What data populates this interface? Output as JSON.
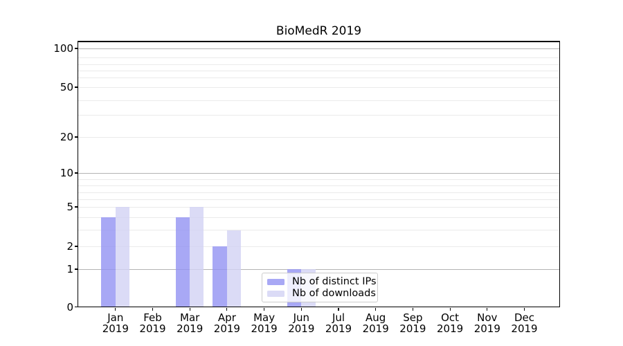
{
  "chart_data": {
    "type": "bar",
    "title": "BioMedR 2019",
    "year": "2019",
    "categories": [
      "Jan",
      "Feb",
      "Mar",
      "Apr",
      "May",
      "Jun",
      "Jul",
      "Aug",
      "Sep",
      "Oct",
      "Nov",
      "Dec"
    ],
    "series": [
      {
        "name": "Nb of distinct IPs",
        "color": "rgb(146,146,243)",
        "alpha": 0.8,
        "solid_hex": "#a8a8f5",
        "values": [
          4,
          0,
          4,
          2,
          0,
          1,
          0,
          0,
          0,
          0,
          0,
          0
        ]
      },
      {
        "name": "Nb of downloads",
        "color": "rgb(210,210,244)",
        "alpha": 0.8,
        "solid_hex": "#dbdbf6",
        "values": [
          5,
          0,
          5,
          3,
          0,
          1,
          0,
          0,
          0,
          0,
          0,
          0
        ]
      }
    ],
    "y_axis": {
      "scale": "symlog",
      "range": [
        0,
        120
      ],
      "tick_labels": [
        0,
        1,
        2,
        5,
        10,
        20,
        50,
        100
      ],
      "major_gridlines": [
        1,
        10,
        100
      ],
      "minor_gridlines": [
        2,
        3,
        4,
        5,
        6,
        7,
        8,
        9,
        20,
        30,
        40,
        50,
        60,
        70,
        80,
        90
      ]
    },
    "legend": {
      "entries": [
        "Nb of distinct IPs",
        "Nb of downloads"
      ]
    },
    "grid": true,
    "colors": {
      "major_grid": "#b3b3b3",
      "minor_grid": "#eaeaea",
      "axis": "#000000",
      "text": "#000000",
      "legend_border": "#cccccc"
    }
  }
}
